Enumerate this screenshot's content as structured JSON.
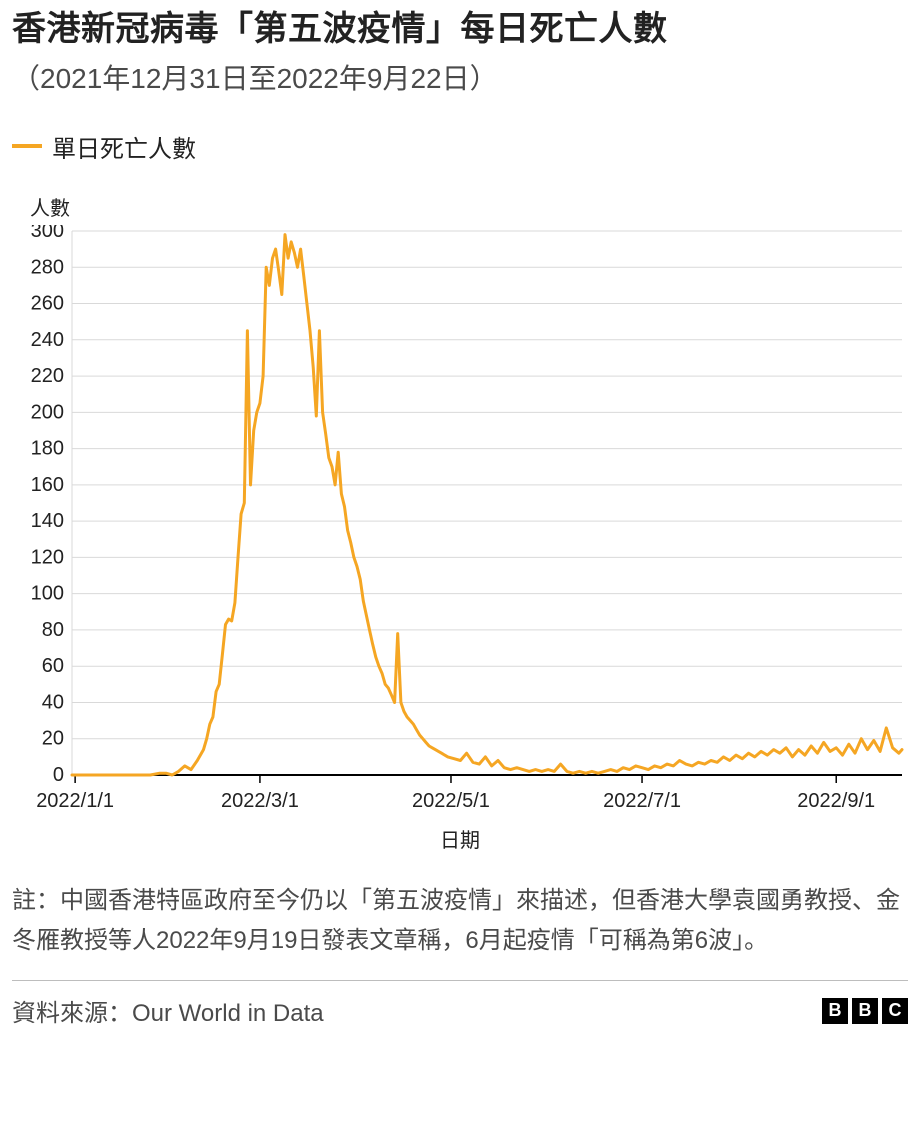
{
  "title": "香港新冠病毒「第五波疫情」每日死亡人數",
  "subtitle": "（2021年12月31日至2022年9月22日）",
  "legend": {
    "label": "單日死亡人數",
    "color": "#f5a623",
    "line_width": 4
  },
  "chart": {
    "type": "line",
    "background_color": "#ffffff",
    "grid_color": "#d9d9d9",
    "axis_color": "#000000",
    "line_color": "#f5a623",
    "line_width": 3,
    "y": {
      "title": "人數",
      "min": 0,
      "max": 300,
      "tick_step": 20,
      "ticks": [
        0,
        20,
        40,
        60,
        80,
        100,
        120,
        140,
        160,
        180,
        200,
        220,
        240,
        260,
        280,
        300
      ],
      "tick_fontsize": 20
    },
    "x": {
      "title": "日期",
      "min_day": 0,
      "max_day": 265,
      "ticks": [
        {
          "day": 1,
          "label": "2022/1/1"
        },
        {
          "day": 60,
          "label": "2022/3/1"
        },
        {
          "day": 121,
          "label": "2022/5/1"
        },
        {
          "day": 182,
          "label": "2022/7/1"
        },
        {
          "day": 244,
          "label": "2022/9/1"
        }
      ],
      "tick_fontsize": 20,
      "title_fontsize": 20
    },
    "series": {
      "name": "單日死亡人數",
      "data": [
        [
          0,
          0
        ],
        [
          5,
          0
        ],
        [
          10,
          0
        ],
        [
          15,
          0
        ],
        [
          20,
          0
        ],
        [
          25,
          0
        ],
        [
          28,
          1
        ],
        [
          30,
          1
        ],
        [
          32,
          0
        ],
        [
          34,
          2
        ],
        [
          36,
          5
        ],
        [
          38,
          3
        ],
        [
          40,
          8
        ],
        [
          42,
          14
        ],
        [
          43,
          20
        ],
        [
          44,
          28
        ],
        [
          45,
          32
        ],
        [
          46,
          46
        ],
        [
          47,
          50
        ],
        [
          48,
          66
        ],
        [
          49,
          83
        ],
        [
          50,
          86
        ],
        [
          51,
          85
        ],
        [
          52,
          95
        ],
        [
          53,
          120
        ],
        [
          54,
          144
        ],
        [
          55,
          150
        ],
        [
          56,
          245
        ],
        [
          57,
          160
        ],
        [
          58,
          190
        ],
        [
          59,
          200
        ],
        [
          60,
          205
        ],
        [
          61,
          220
        ],
        [
          62,
          280
        ],
        [
          63,
          270
        ],
        [
          64,
          285
        ],
        [
          65,
          290
        ],
        [
          66,
          278
        ],
        [
          67,
          265
        ],
        [
          68,
          298
        ],
        [
          69,
          285
        ],
        [
          70,
          294
        ],
        [
          71,
          288
        ],
        [
          72,
          280
        ],
        [
          73,
          290
        ],
        [
          74,
          275
        ],
        [
          75,
          260
        ],
        [
          76,
          245
        ],
        [
          77,
          225
        ],
        [
          78,
          198
        ],
        [
          79,
          245
        ],
        [
          80,
          200
        ],
        [
          81,
          188
        ],
        [
          82,
          175
        ],
        [
          83,
          170
        ],
        [
          84,
          160
        ],
        [
          85,
          178
        ],
        [
          86,
          155
        ],
        [
          87,
          148
        ],
        [
          88,
          135
        ],
        [
          89,
          128
        ],
        [
          90,
          120
        ],
        [
          91,
          115
        ],
        [
          92,
          108
        ],
        [
          93,
          96
        ],
        [
          94,
          88
        ],
        [
          95,
          80
        ],
        [
          96,
          72
        ],
        [
          97,
          65
        ],
        [
          98,
          60
        ],
        [
          99,
          56
        ],
        [
          100,
          50
        ],
        [
          101,
          48
        ],
        [
          102,
          44
        ],
        [
          103,
          40
        ],
        [
          104,
          78
        ],
        [
          105,
          40
        ],
        [
          106,
          35
        ],
        [
          107,
          32
        ],
        [
          108,
          30
        ],
        [
          109,
          28
        ],
        [
          110,
          25
        ],
        [
          111,
          22
        ],
        [
          112,
          20
        ],
        [
          113,
          18
        ],
        [
          114,
          16
        ],
        [
          115,
          15
        ],
        [
          116,
          14
        ],
        [
          117,
          13
        ],
        [
          118,
          12
        ],
        [
          119,
          11
        ],
        [
          120,
          10
        ],
        [
          122,
          9
        ],
        [
          124,
          8
        ],
        [
          126,
          12
        ],
        [
          128,
          7
        ],
        [
          130,
          6
        ],
        [
          132,
          10
        ],
        [
          134,
          5
        ],
        [
          136,
          8
        ],
        [
          138,
          4
        ],
        [
          140,
          3
        ],
        [
          142,
          4
        ],
        [
          144,
          3
        ],
        [
          146,
          2
        ],
        [
          148,
          3
        ],
        [
          150,
          2
        ],
        [
          152,
          3
        ],
        [
          154,
          2
        ],
        [
          156,
          6
        ],
        [
          158,
          2
        ],
        [
          160,
          1
        ],
        [
          162,
          2
        ],
        [
          164,
          1
        ],
        [
          166,
          2
        ],
        [
          168,
          1
        ],
        [
          170,
          2
        ],
        [
          172,
          3
        ],
        [
          174,
          2
        ],
        [
          176,
          4
        ],
        [
          178,
          3
        ],
        [
          180,
          5
        ],
        [
          182,
          4
        ],
        [
          184,
          3
        ],
        [
          186,
          5
        ],
        [
          188,
          4
        ],
        [
          190,
          6
        ],
        [
          192,
          5
        ],
        [
          194,
          8
        ],
        [
          196,
          6
        ],
        [
          198,
          5
        ],
        [
          200,
          7
        ],
        [
          202,
          6
        ],
        [
          204,
          8
        ],
        [
          206,
          7
        ],
        [
          208,
          10
        ],
        [
          210,
          8
        ],
        [
          212,
          11
        ],
        [
          214,
          9
        ],
        [
          216,
          12
        ],
        [
          218,
          10
        ],
        [
          220,
          13
        ],
        [
          222,
          11
        ],
        [
          224,
          14
        ],
        [
          226,
          12
        ],
        [
          228,
          15
        ],
        [
          230,
          10
        ],
        [
          232,
          14
        ],
        [
          234,
          11
        ],
        [
          236,
          16
        ],
        [
          238,
          12
        ],
        [
          240,
          18
        ],
        [
          242,
          13
        ],
        [
          244,
          15
        ],
        [
          246,
          11
        ],
        [
          248,
          17
        ],
        [
          250,
          12
        ],
        [
          252,
          20
        ],
        [
          254,
          14
        ],
        [
          256,
          19
        ],
        [
          258,
          13
        ],
        [
          260,
          26
        ],
        [
          262,
          15
        ],
        [
          264,
          12
        ],
        [
          265,
          14
        ]
      ]
    }
  },
  "note": "註：中國香港特區政府至今仍以「第五波疫情」來描述，但香港大學袁國勇教授、金冬雁教授等人2022年9月19日發表文章稱，6月起疫情「可稱為第6波」。",
  "source": "資料來源：Our World in Data",
  "logo": {
    "letters": [
      "B",
      "B",
      "C"
    ]
  },
  "typography": {
    "title_fontsize": 34,
    "subtitle_fontsize": 28,
    "legend_fontsize": 24,
    "note_fontsize": 24,
    "source_fontsize": 24,
    "yaxis_title_fontsize": 20
  }
}
